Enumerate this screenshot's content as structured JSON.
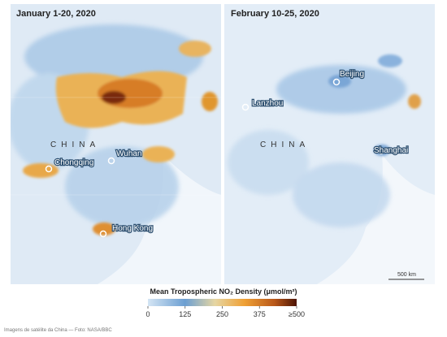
{
  "panels": [
    {
      "title": "January 1-20, 2020",
      "country": "CHINA",
      "cities": [
        "Wuhan",
        "Chongqing",
        "Hong Kong"
      ]
    },
    {
      "title": "February 10-25, 2020",
      "country": "CHINA",
      "cities": [
        "Beijing",
        "Lanzhou",
        "Shanghai"
      ],
      "scale": "500 km"
    }
  ],
  "legend": {
    "title": "Mean Tropospheric NO₂ Density (μmol/m²)",
    "range": [
      0,
      500
    ],
    "ticks": [
      0,
      125,
      250,
      375,
      {
        "value": 500,
        "label": "≥500"
      }
    ]
  },
  "caption": "Imagens de satélite da China — Foto: NASA/BBC"
}
